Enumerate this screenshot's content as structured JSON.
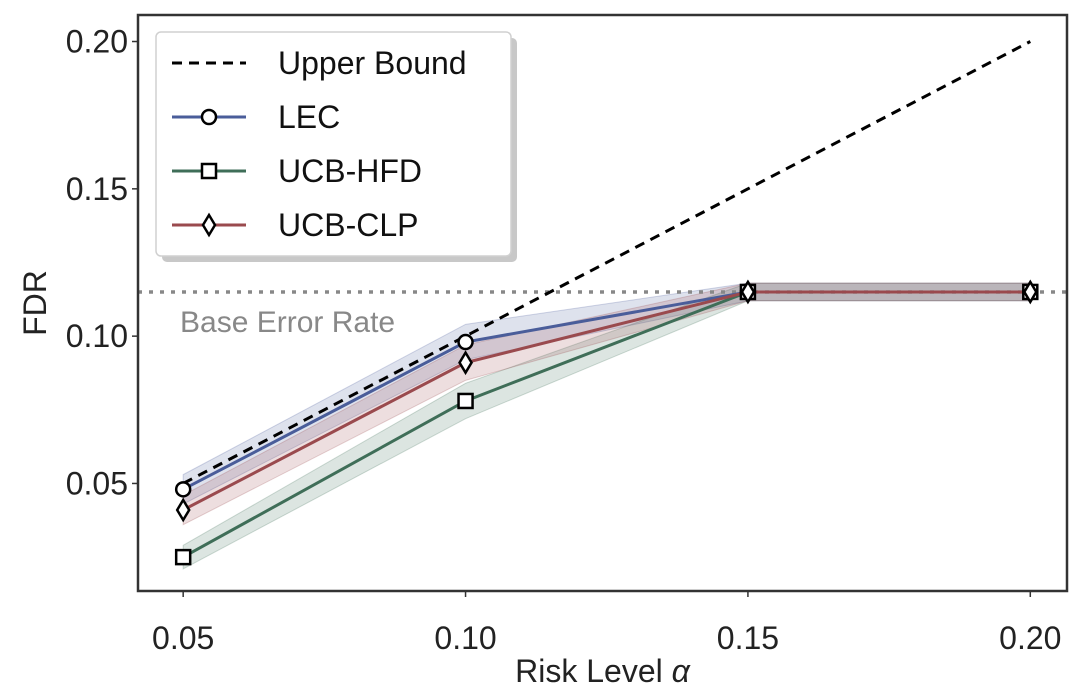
{
  "chart_data": {
    "type": "line",
    "xlabel": "Risk Level",
    "xlabel_symbol": "α",
    "ylabel": "FDR",
    "xlim": [
      0.042,
      0.2065
    ],
    "ylim": [
      0.0135,
      0.209
    ],
    "xticks": [
      0.05,
      0.1,
      0.15,
      0.2
    ],
    "xtick_labels": [
      "0.05",
      "0.10",
      "0.15",
      "0.20"
    ],
    "yticks": [
      0.05,
      0.1,
      0.15,
      0.2
    ],
    "ytick_labels": [
      "0.05",
      "0.10",
      "0.15",
      "0.20"
    ],
    "grid": false,
    "legend_position": "top-left",
    "x": [
      0.05,
      0.1,
      0.15,
      0.2
    ],
    "series": [
      {
        "name": "Upper Bound",
        "values": [
          0.05,
          0.1,
          0.15,
          0.2
        ],
        "color": "#000000",
        "style": "dashed",
        "marker": "none"
      },
      {
        "name": "LEC",
        "values": [
          0.048,
          0.098,
          0.115,
          0.115
        ],
        "band": [
          0.005,
          0.006,
          0.003,
          0.003
        ],
        "color": "#4a5d9a",
        "marker": "circle"
      },
      {
        "name": "UCB-HFD",
        "values": [
          0.025,
          0.078,
          0.115,
          0.115
        ],
        "band": [
          0.004,
          0.006,
          0.003,
          0.003
        ],
        "color": "#3f6e58",
        "marker": "square"
      },
      {
        "name": "UCB-CLP",
        "values": [
          0.041,
          0.091,
          0.115,
          0.115
        ],
        "band": [
          0.005,
          0.006,
          0.003,
          0.003
        ],
        "color": "#9a4a4e",
        "marker": "diamond"
      }
    ],
    "reference_line": {
      "label": "Base Error Rate",
      "value": 0.115,
      "color": "#888888"
    }
  }
}
